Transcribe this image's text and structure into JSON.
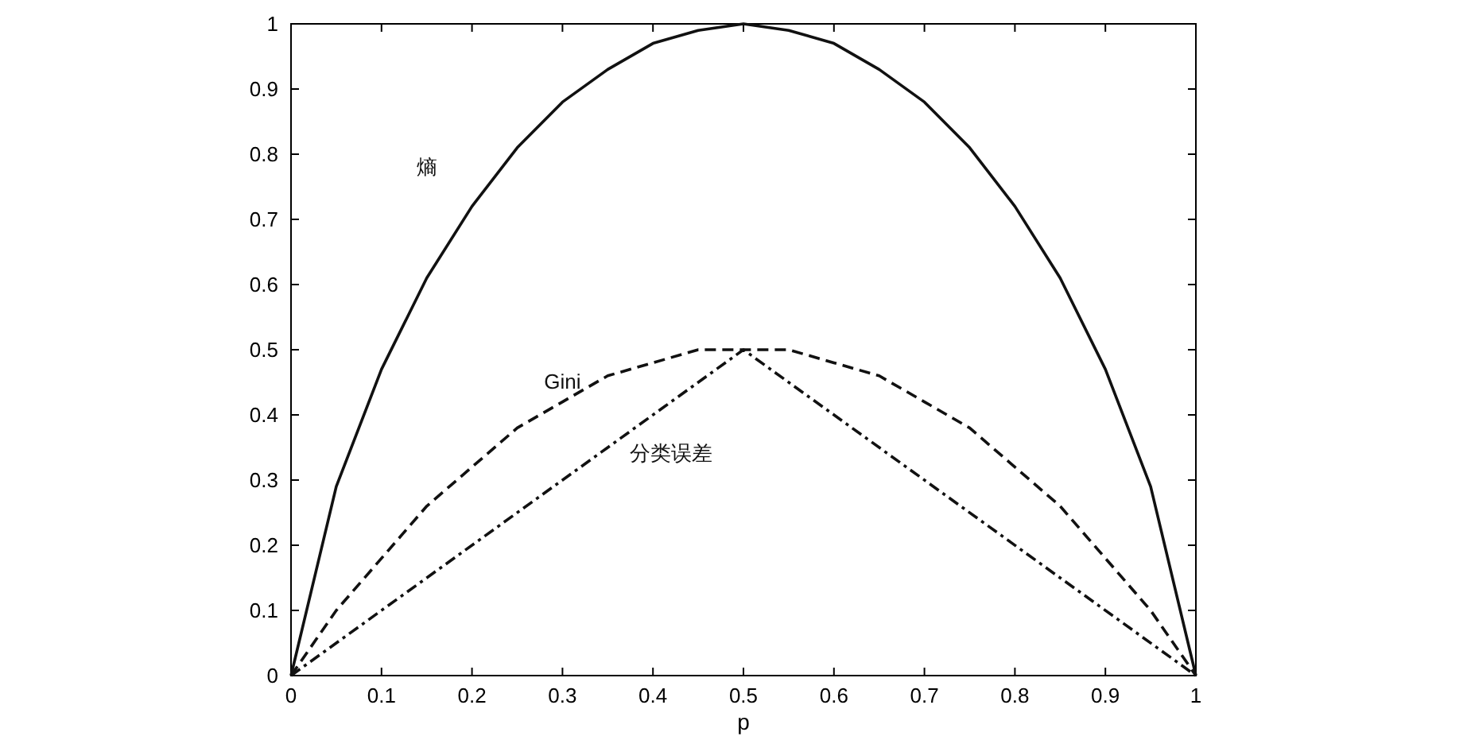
{
  "chart_data": {
    "type": "line",
    "xlabel": "p",
    "xlim": [
      0,
      1
    ],
    "ylim": [
      0,
      1
    ],
    "xticks": [
      0,
      0.1,
      0.2,
      0.3,
      0.4,
      0.5,
      0.6,
      0.7,
      0.8,
      0.9,
      1
    ],
    "yticks": [
      0,
      0.1,
      0.2,
      0.3,
      0.4,
      0.5,
      0.6,
      0.7,
      0.8,
      0.9,
      1
    ],
    "grid": false,
    "series": [
      {
        "name": "熵",
        "color": "#111111",
        "line_style": "solid",
        "x": [
          0,
          0.05,
          0.1,
          0.15,
          0.2,
          0.25,
          0.3,
          0.35,
          0.4,
          0.45,
          0.5,
          0.55,
          0.6,
          0.65,
          0.7,
          0.75,
          0.8,
          0.85,
          0.9,
          0.95,
          1
        ],
        "values": [
          0,
          0.29,
          0.47,
          0.61,
          0.72,
          0.81,
          0.88,
          0.93,
          0.97,
          0.99,
          1,
          0.99,
          0.97,
          0.93,
          0.88,
          0.81,
          0.72,
          0.61,
          0.47,
          0.29,
          0
        ]
      },
      {
        "name": "Gini",
        "color": "#111111",
        "line_style": "dashed",
        "x": [
          0,
          0.05,
          0.1,
          0.15,
          0.2,
          0.25,
          0.3,
          0.35,
          0.4,
          0.45,
          0.5,
          0.55,
          0.6,
          0.65,
          0.7,
          0.75,
          0.8,
          0.85,
          0.9,
          0.95,
          1
        ],
        "values": [
          0,
          0.1,
          0.18,
          0.26,
          0.32,
          0.38,
          0.42,
          0.46,
          0.48,
          0.5,
          0.5,
          0.5,
          0.48,
          0.46,
          0.42,
          0.38,
          0.32,
          0.26,
          0.18,
          0.1,
          0
        ]
      },
      {
        "name": "分类误差",
        "color": "#111111",
        "line_style": "dashdot",
        "x": [
          0,
          0.5,
          1
        ],
        "values": [
          0,
          0.5,
          0
        ]
      }
    ]
  }
}
